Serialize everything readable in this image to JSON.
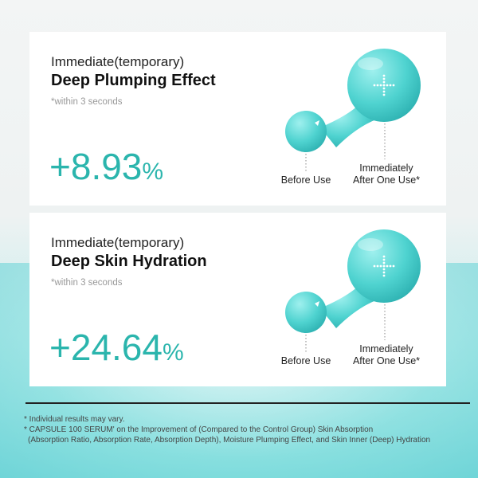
{
  "colors": {
    "accent": "#2bb5ad",
    "droplet": "#4fd3d0"
  },
  "cards": [
    {
      "line1": "Immediate(temporary)",
      "line2": "Deep Plumping Effect",
      "note": "*within 3 seconds",
      "value": "+8.93",
      "unit": "%",
      "before_label": "Before Use",
      "after_label_1": "Immediately",
      "after_label_2": "After One Use*"
    },
    {
      "line1": "Immediate(temporary)",
      "line2": "Deep Skin Hydration",
      "note": "*within 3 seconds",
      "value": "+24.64",
      "unit": "%",
      "before_label": "Before Use",
      "after_label_1": "Immediately",
      "after_label_2": "After One Use*"
    }
  ],
  "footnotes": {
    "note1": "* Individual results may vary.",
    "note2": "* CAPSULE 100 SERUM' on the Improvement of (Compared to the Control Group) Skin Absorption",
    "note3": "(Absorption Ratio, Absorption Rate, Absorption Depth), Moisture Plumping Effect, and Skin Inner (Deep) Hydration"
  }
}
